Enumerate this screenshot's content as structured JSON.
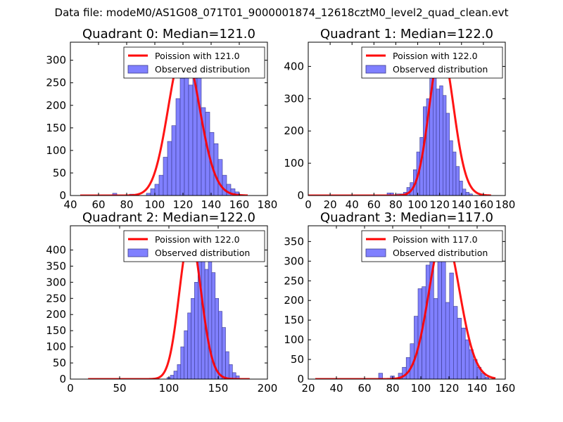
{
  "figure": {
    "title": "Data file: modeM0/AS1G08_071T01_9000001874_12618cztM0_level2_quad_clean.evt"
  },
  "colors": {
    "bars": "#8080ff",
    "bar_edge": "#3a3a8c",
    "poisson": "#ff0000"
  },
  "chart_data": [
    {
      "type": "bar",
      "title": "Quadrant 0: Median=121.0",
      "median": 121.0,
      "xlim": [
        40,
        180
      ],
      "ylim": [
        0,
        340
      ],
      "xticks": [
        40,
        60,
        80,
        100,
        120,
        140,
        160,
        180
      ],
      "yticks": [
        0,
        50,
        100,
        150,
        200,
        250,
        300
      ],
      "legend": [
        "Poission with 121.0",
        "Observed distribution"
      ],
      "bin_start": 70,
      "bin_width": 3,
      "values": [
        5,
        0,
        0,
        0,
        3,
        2,
        0,
        0,
        5,
        15,
        25,
        45,
        85,
        120,
        155,
        215,
        260,
        290,
        245,
        260,
        305,
        195,
        185,
        140,
        115,
        80,
        45,
        25,
        15,
        8,
        2
      ],
      "poisson": {
        "x_min": 47,
        "x_max": 166,
        "peak": 325
      }
    },
    {
      "type": "bar",
      "title": "Quadrant 1: Median=122.0",
      "median": 122.0,
      "xlim": [
        0,
        180
      ],
      "ylim": [
        0,
        475
      ],
      "xticks": [
        0,
        20,
        40,
        60,
        80,
        100,
        120,
        140,
        160,
        180
      ],
      "yticks": [
        0,
        100,
        200,
        300,
        400
      ],
      "legend": [
        "Poission with 122.0",
        "Observed distribution"
      ],
      "bin_start": 72,
      "bin_width": 3,
      "values": [
        8,
        8,
        0,
        5,
        5,
        10,
        25,
        40,
        80,
        135,
        180,
        275,
        300,
        370,
        425,
        330,
        340,
        310,
        255,
        170,
        135,
        90,
        45,
        20,
        10,
        5
      ],
      "poisson": {
        "x_min": 0,
        "x_max": 167,
        "peak": 455
      }
    },
    {
      "type": "bar",
      "title": "Quadrant 2: Median=122.0",
      "median": 122.0,
      "xlim": [
        0,
        200
      ],
      "ylim": [
        0,
        475
      ],
      "xticks": [
        0,
        50,
        100,
        150,
        200
      ],
      "yticks": [
        0,
        50,
        100,
        150,
        200,
        250,
        300,
        350,
        400
      ],
      "legend": [
        "Poission with 122.0",
        "Observed distribution"
      ],
      "bin_start": 98,
      "bin_width": 3.5,
      "values": [
        5,
        12,
        25,
        45,
        100,
        150,
        205,
        250,
        300,
        380,
        430,
        340,
        410,
        330,
        250,
        210,
        160,
        85,
        45,
        20,
        10
      ],
      "poisson": {
        "x_min": 18,
        "x_max": 182,
        "peak": 445
      }
    },
    {
      "type": "bar",
      "title": "Quadrant 3: Median=117.0",
      "median": 117.0,
      "xlim": [
        20,
        160
      ],
      "ylim": [
        0,
        390
      ],
      "xticks": [
        20,
        40,
        60,
        80,
        100,
        120,
        140,
        160
      ],
      "yticks": [
        0,
        50,
        100,
        150,
        200,
        250,
        300,
        350
      ],
      "legend": [
        "Poission with 117.0",
        "Observed distribution"
      ],
      "bin_start": 70,
      "bin_width": 2.8,
      "values": [
        15,
        0,
        0,
        8,
        3,
        15,
        30,
        55,
        90,
        160,
        230,
        235,
        290,
        310,
        205,
        320,
        340,
        195,
        270,
        185,
        155,
        130,
        100,
        75,
        50,
        30,
        15,
        5
      ],
      "poisson": {
        "x_min": 25,
        "x_max": 153,
        "peak": 370
      }
    }
  ]
}
